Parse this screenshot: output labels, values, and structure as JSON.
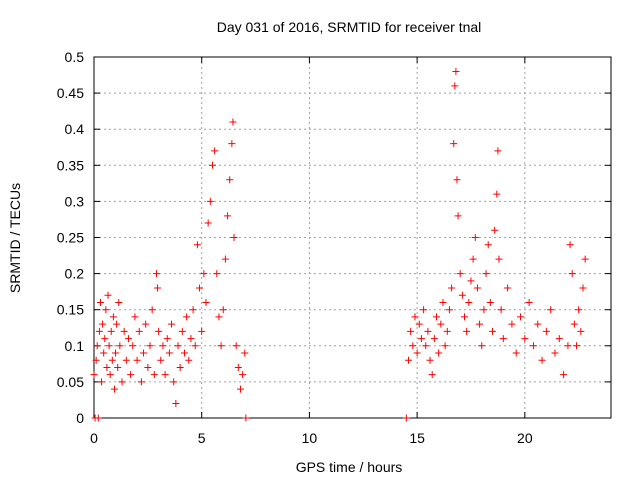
{
  "chart_data": {
    "type": "scatter",
    "title": "Day 031 of 2016, SRMTID for receiver tnal",
    "xlabel": "GPS time / hours",
    "ylabel": "SRMTID / TECUs",
    "xlim": [
      0,
      24
    ],
    "ylim": [
      0,
      0.5
    ],
    "xticks": [
      0,
      5,
      10,
      15,
      20
    ],
    "yticks": [
      0,
      0.05,
      0.1,
      0.15,
      0.2,
      0.25,
      0.3,
      0.35,
      0.4,
      0.45,
      0.5
    ],
    "grid": true,
    "marker": "+",
    "color": "#ff0000",
    "series": [
      {
        "name": "SRMTID",
        "points": [
          [
            0.0,
            0.06
          ],
          [
            0.05,
            0.0
          ],
          [
            0.1,
            0.08
          ],
          [
            0.15,
            0.1
          ],
          [
            0.2,
            0.0
          ],
          [
            0.25,
            0.12
          ],
          [
            0.3,
            0.16
          ],
          [
            0.35,
            0.05
          ],
          [
            0.4,
            0.13
          ],
          [
            0.45,
            0.09
          ],
          [
            0.5,
            0.11
          ],
          [
            0.55,
            0.15
          ],
          [
            0.6,
            0.07
          ],
          [
            0.65,
            0.17
          ],
          [
            0.7,
            0.1
          ],
          [
            0.75,
            0.06
          ],
          [
            0.8,
            0.12
          ],
          [
            0.85,
            0.08
          ],
          [
            0.9,
            0.14
          ],
          [
            0.95,
            0.04
          ],
          [
            1.0,
            0.09
          ],
          [
            1.05,
            0.13
          ],
          [
            1.1,
            0.07
          ],
          [
            1.15,
            0.16
          ],
          [
            1.2,
            0.1
          ],
          [
            1.3,
            0.05
          ],
          [
            1.4,
            0.12
          ],
          [
            1.5,
            0.08
          ],
          [
            1.6,
            0.11
          ],
          [
            1.7,
            0.06
          ],
          [
            1.8,
            0.1
          ],
          [
            1.9,
            0.14
          ],
          [
            2.0,
            0.08
          ],
          [
            2.1,
            0.12
          ],
          [
            2.2,
            0.05
          ],
          [
            2.3,
            0.09
          ],
          [
            2.4,
            0.13
          ],
          [
            2.5,
            0.07
          ],
          [
            2.6,
            0.1
          ],
          [
            2.7,
            0.15
          ],
          [
            2.8,
            0.06
          ],
          [
            2.9,
            0.2
          ],
          [
            2.95,
            0.18
          ],
          [
            3.0,
            0.12
          ],
          [
            3.1,
            0.08
          ],
          [
            3.2,
            0.1
          ],
          [
            3.3,
            0.06
          ],
          [
            3.4,
            0.11
          ],
          [
            3.5,
            0.09
          ],
          [
            3.6,
            0.13
          ],
          [
            3.7,
            0.05
          ],
          [
            3.8,
            0.02
          ],
          [
            3.9,
            0.1
          ],
          [
            4.0,
            0.07
          ],
          [
            4.1,
            0.12
          ],
          [
            4.2,
            0.09
          ],
          [
            4.3,
            0.14
          ],
          [
            4.4,
            0.08
          ],
          [
            4.5,
            0.11
          ],
          [
            4.6,
            0.15
          ],
          [
            4.7,
            0.1
          ],
          [
            4.8,
            0.24
          ],
          [
            4.9,
            0.18
          ],
          [
            5.0,
            0.12
          ],
          [
            5.1,
            0.2
          ],
          [
            5.2,
            0.16
          ],
          [
            5.3,
            0.27
          ],
          [
            5.4,
            0.3
          ],
          [
            5.5,
            0.35
          ],
          [
            5.6,
            0.37
          ],
          [
            5.7,
            0.2
          ],
          [
            5.8,
            0.14
          ],
          [
            5.9,
            0.1
          ],
          [
            6.0,
            0.15
          ],
          [
            6.1,
            0.22
          ],
          [
            6.2,
            0.28
          ],
          [
            6.3,
            0.33
          ],
          [
            6.4,
            0.38
          ],
          [
            6.45,
            0.41
          ],
          [
            6.5,
            0.25
          ],
          [
            6.6,
            0.1
          ],
          [
            6.7,
            0.07
          ],
          [
            6.8,
            0.04
          ],
          [
            6.9,
            0.06
          ],
          [
            7.0,
            0.09
          ],
          [
            7.05,
            0.0
          ],
          [
            14.5,
            0.0
          ],
          [
            14.6,
            0.08
          ],
          [
            14.7,
            0.12
          ],
          [
            14.8,
            0.1
          ],
          [
            14.9,
            0.14
          ],
          [
            15.0,
            0.09
          ],
          [
            15.1,
            0.13
          ],
          [
            15.2,
            0.11
          ],
          [
            15.3,
            0.15
          ],
          [
            15.4,
            0.1
          ],
          [
            15.5,
            0.12
          ],
          [
            15.6,
            0.08
          ],
          [
            15.7,
            0.06
          ],
          [
            15.8,
            0.11
          ],
          [
            15.9,
            0.14
          ],
          [
            16.0,
            0.09
          ],
          [
            16.1,
            0.13
          ],
          [
            16.2,
            0.16
          ],
          [
            16.3,
            0.1
          ],
          [
            16.4,
            0.12
          ],
          [
            16.5,
            0.15
          ],
          [
            16.6,
            0.18
          ],
          [
            16.7,
            0.38
          ],
          [
            16.75,
            0.46
          ],
          [
            16.8,
            0.48
          ],
          [
            16.85,
            0.33
          ],
          [
            16.9,
            0.28
          ],
          [
            17.0,
            0.2
          ],
          [
            17.1,
            0.17
          ],
          [
            17.2,
            0.14
          ],
          [
            17.3,
            0.12
          ],
          [
            17.4,
            0.16
          ],
          [
            17.5,
            0.19
          ],
          [
            17.6,
            0.22
          ],
          [
            17.7,
            0.25
          ],
          [
            17.8,
            0.18
          ],
          [
            17.9,
            0.13
          ],
          [
            18.0,
            0.1
          ],
          [
            18.1,
            0.15
          ],
          [
            18.2,
            0.2
          ],
          [
            18.3,
            0.24
          ],
          [
            18.4,
            0.16
          ],
          [
            18.5,
            0.12
          ],
          [
            18.6,
            0.26
          ],
          [
            18.7,
            0.31
          ],
          [
            18.75,
            0.37
          ],
          [
            18.8,
            0.22
          ],
          [
            18.9,
            0.15
          ],
          [
            19.0,
            0.11
          ],
          [
            19.2,
            0.18
          ],
          [
            19.4,
            0.13
          ],
          [
            19.6,
            0.09
          ],
          [
            19.8,
            0.14
          ],
          [
            20.0,
            0.11
          ],
          [
            20.2,
            0.16
          ],
          [
            20.4,
            0.1
          ],
          [
            20.6,
            0.13
          ],
          [
            20.8,
            0.08
          ],
          [
            21.0,
            0.12
          ],
          [
            21.2,
            0.15
          ],
          [
            21.4,
            0.09
          ],
          [
            21.6,
            0.11
          ],
          [
            21.8,
            0.06
          ],
          [
            22.0,
            0.1
          ],
          [
            22.1,
            0.24
          ],
          [
            22.2,
            0.2
          ],
          [
            22.3,
            0.13
          ],
          [
            22.4,
            0.1
          ],
          [
            22.5,
            0.15
          ],
          [
            22.6,
            0.12
          ],
          [
            22.7,
            0.18
          ],
          [
            22.8,
            0.22
          ]
        ]
      }
    ]
  }
}
